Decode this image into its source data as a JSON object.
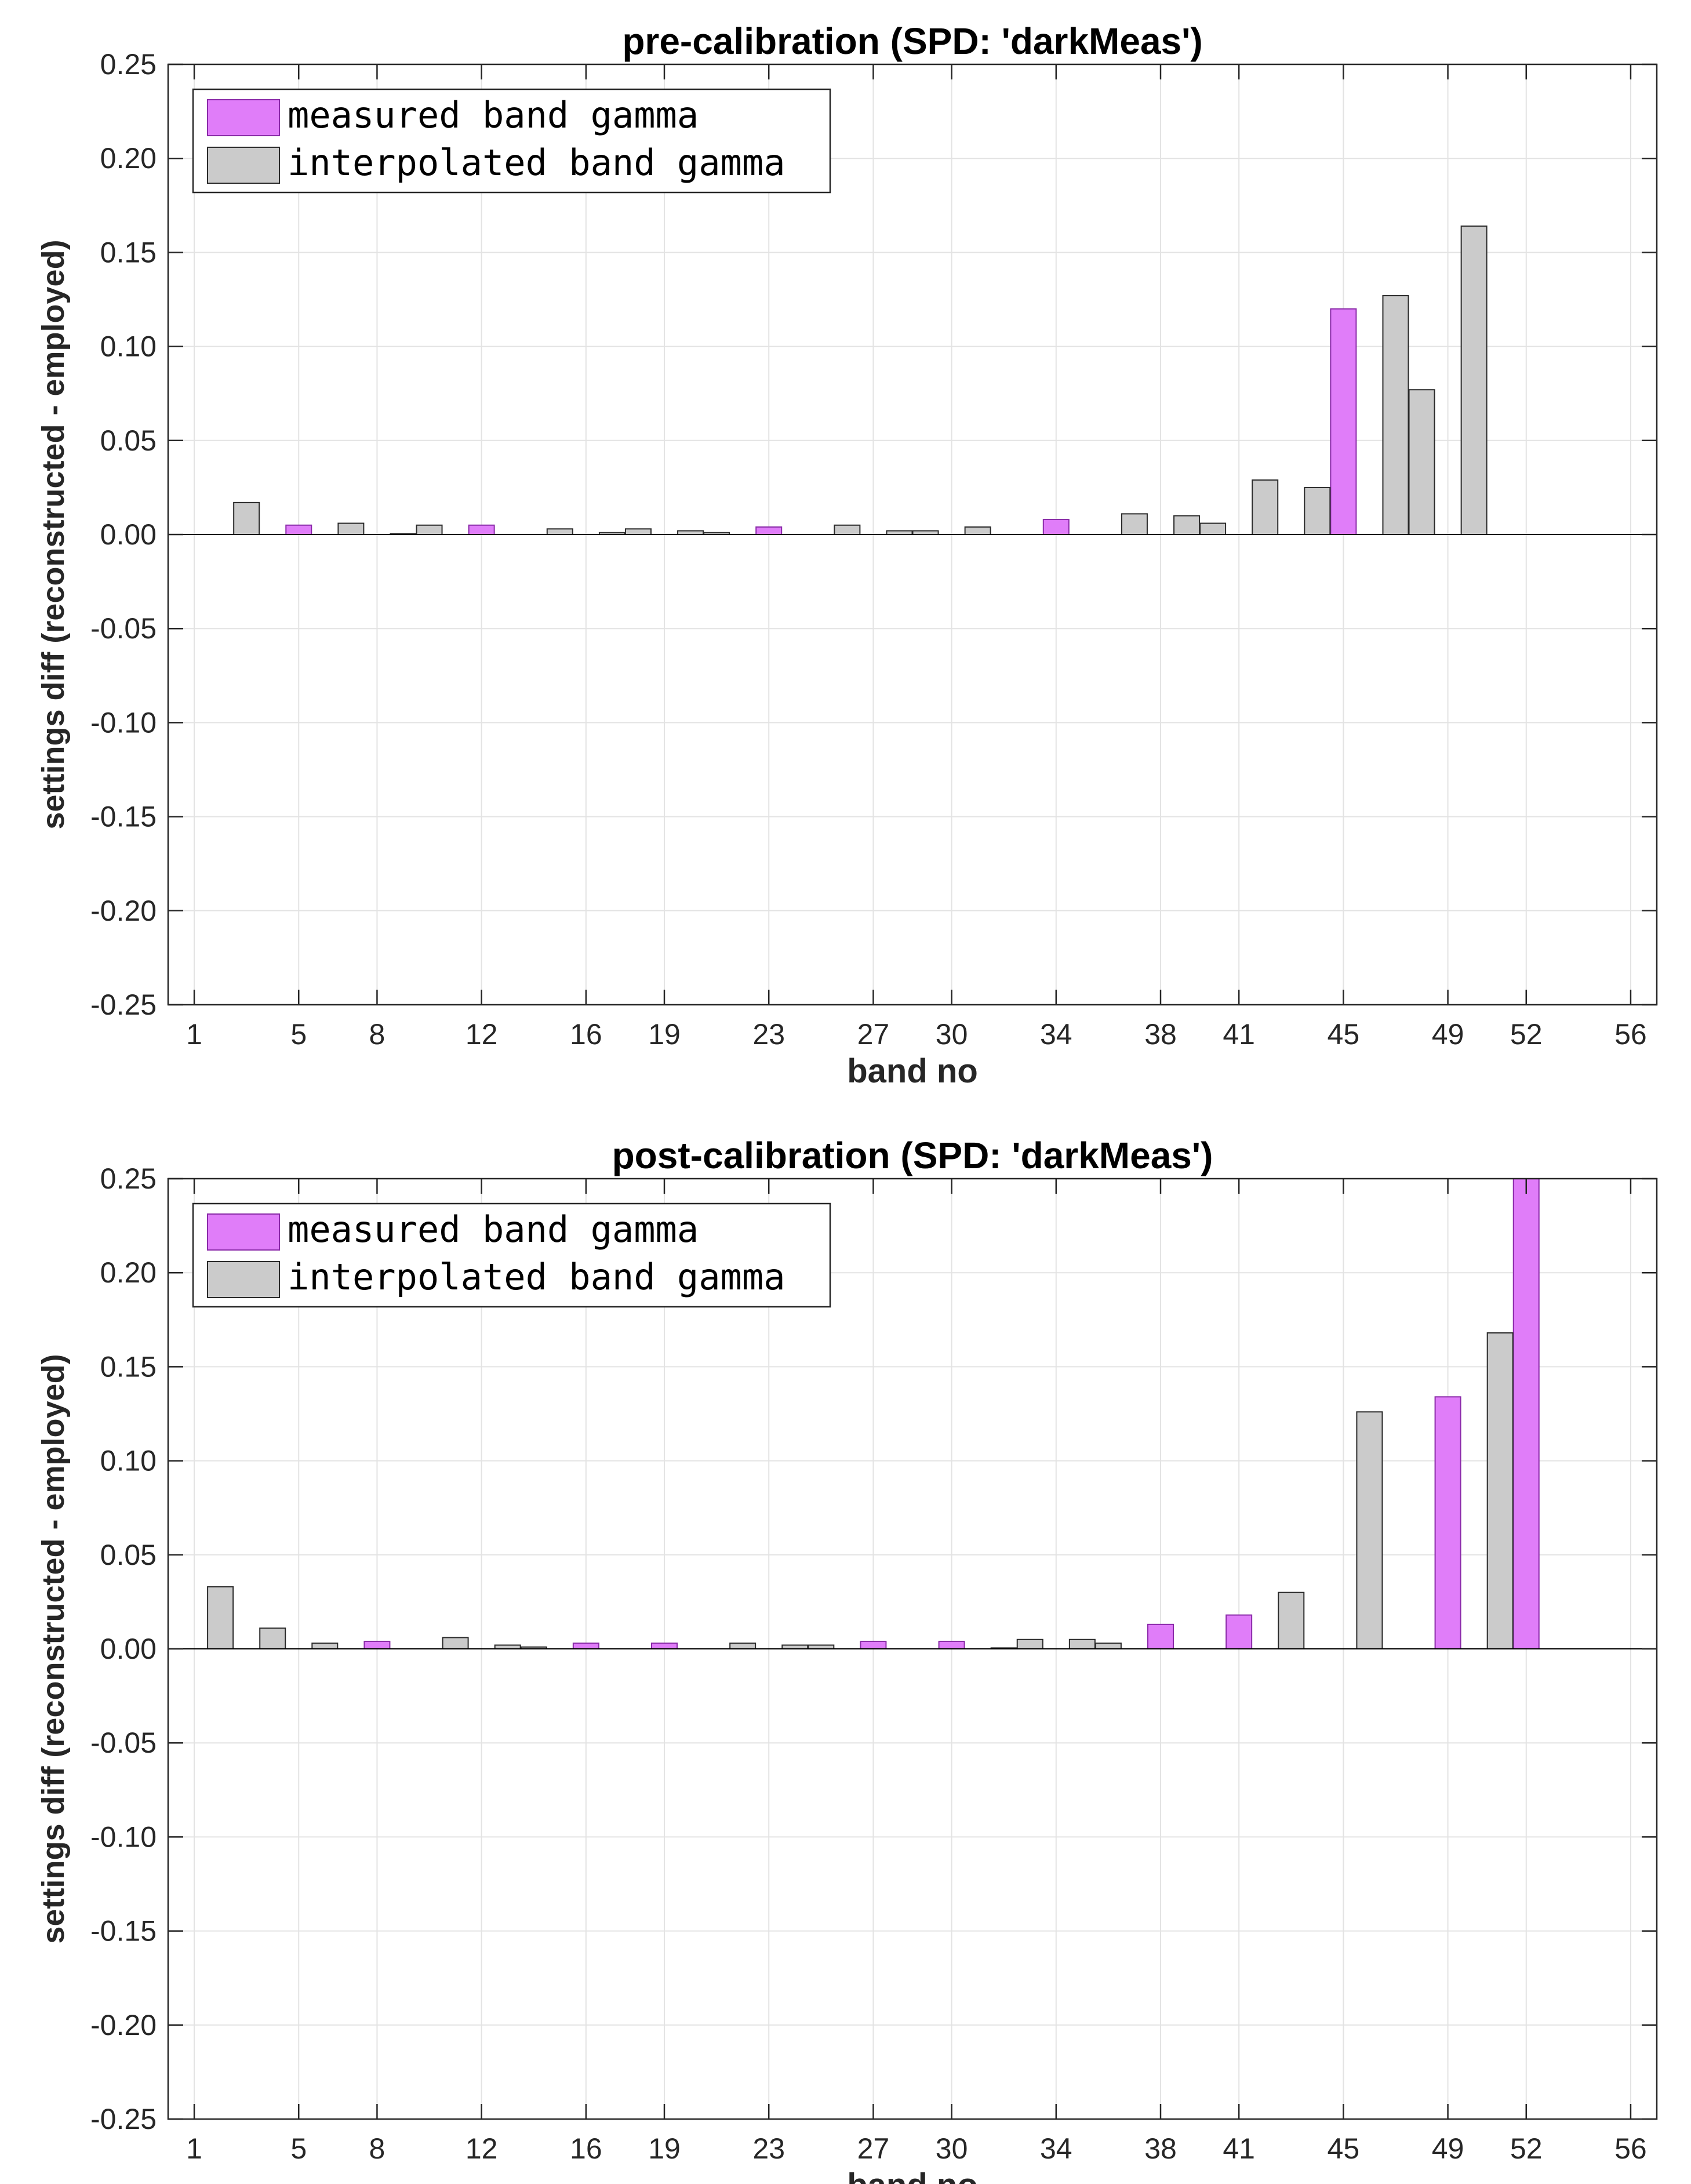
{
  "colors": {
    "measured": "#e07df9",
    "measured_edge": "#8a2ba8",
    "interpolated": "#cbcbcb",
    "interpolated_edge": "#2b2b2b",
    "grid": "#e3e3e3",
    "axis": "#262626"
  },
  "chart_data": [
    {
      "type": "bar",
      "title": "pre-calibration (SPD: 'darkMeas')",
      "xlabel": "band no",
      "ylabel": "settings diff (reconstructed - employed)",
      "xlim": [
        0,
        57
      ],
      "ylim": [
        -0.25,
        0.25
      ],
      "xticks": [
        1,
        5,
        8,
        12,
        16,
        19,
        23,
        27,
        30,
        34,
        38,
        41,
        45,
        49,
        52,
        56
      ],
      "yticks": [
        -0.25,
        -0.2,
        -0.15,
        -0.1,
        -0.05,
        0,
        0.05,
        0.1,
        0.15,
        0.2,
        0.25
      ],
      "ytick_labels": [
        "-0.25",
        "-0.20",
        "-0.15",
        "-0.10",
        "-0.05",
        "0.00",
        "0.05",
        "0.10",
        "0.15",
        "0.20",
        "0.25"
      ],
      "grid": true,
      "legend_position": "top-left",
      "series": [
        {
          "name": "measured band gamma",
          "x": [
            5,
            12,
            23,
            34,
            45
          ],
          "values": [
            0.005,
            0.005,
            0.004,
            0.008,
            0.12
          ]
        },
        {
          "name": "interpolated band gamma",
          "x": [
            3,
            7,
            9,
            10,
            15,
            17,
            18,
            20,
            21,
            26,
            28,
            29,
            31,
            37,
            39,
            40,
            42,
            44,
            47,
            48,
            50
          ],
          "values": [
            0.017,
            0.006,
            0.0005,
            0.005,
            0.003,
            0.001,
            0.003,
            0.002,
            0.001,
            0.005,
            0.002,
            0.002,
            0.004,
            0.011,
            0.01,
            0.006,
            0.029,
            0.025,
            0.127,
            0.077,
            0.164
          ]
        }
      ]
    },
    {
      "type": "bar",
      "title": "post-calibration (SPD: 'darkMeas')",
      "xlabel": "band no",
      "ylabel": "settings diff (reconstructed - employed)",
      "xlim": [
        0,
        57
      ],
      "ylim": [
        -0.25,
        0.25
      ],
      "xticks": [
        1,
        5,
        8,
        12,
        16,
        19,
        23,
        27,
        30,
        34,
        38,
        41,
        45,
        49,
        52,
        56
      ],
      "yticks": [
        -0.25,
        -0.2,
        -0.15,
        -0.1,
        -0.05,
        0,
        0.05,
        0.1,
        0.15,
        0.2,
        0.25
      ],
      "ytick_labels": [
        "-0.25",
        "-0.20",
        "-0.15",
        "-0.10",
        "-0.05",
        "0.00",
        "0.05",
        "0.10",
        "0.15",
        "0.20",
        "0.25"
      ],
      "grid": true,
      "legend_position": "top-left",
      "series": [
        {
          "name": "measured band gamma",
          "x": [
            8,
            16,
            19,
            27,
            30,
            38,
            41,
            49,
            52
          ],
          "values": [
            0.004,
            0.003,
            0.003,
            0.004,
            0.004,
            0.013,
            0.018,
            0.134,
            0.25
          ]
        },
        {
          "name": "interpolated band gamma",
          "x": [
            2,
            4,
            6,
            11,
            13,
            14,
            22,
            24,
            25,
            32,
            33,
            35,
            36,
            43,
            46,
            51
          ],
          "values": [
            0.033,
            0.011,
            0.003,
            0.006,
            0.002,
            0.001,
            0.003,
            0.002,
            0.002,
            0.0005,
            0.005,
            0.005,
            0.003,
            0.03,
            0.126,
            0.168
          ]
        }
      ]
    }
  ]
}
